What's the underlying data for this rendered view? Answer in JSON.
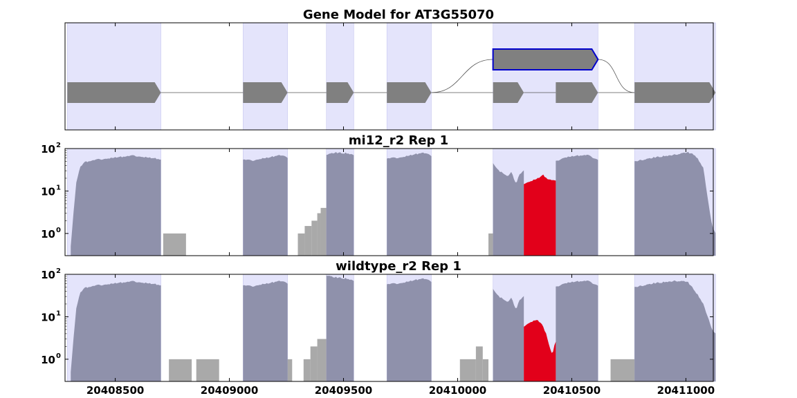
{
  "chart_data": {
    "type": "area",
    "x_axis": {
      "range": [
        20408280,
        20411120
      ],
      "tick_labels": [
        "20408500",
        "20409000",
        "20409500",
        "20410000",
        "20410500",
        "20411000"
      ],
      "tick_values": [
        20408500,
        20409000,
        20409500,
        20410000,
        20410500,
        20411000
      ]
    },
    "panels": [
      {
        "kind": "gene-model",
        "title": "Gene Model for AT3G55070",
        "exon_regions": [
          [
            20408290,
            20408700
          ],
          [
            20409060,
            20409255
          ],
          [
            20409425,
            20409545
          ],
          [
            20409690,
            20409885
          ],
          [
            20410155,
            20410615
          ],
          [
            20410775,
            20411130
          ]
        ],
        "transcripts": [
          {
            "exons": [
              [
                20408290,
                20408700
              ],
              [
                20409060,
                20409255
              ],
              [
                20409425,
                20409545
              ],
              [
                20409690,
                20409885
              ],
              [
                20410155,
                20410290
              ],
              [
                20410430,
                20410615
              ],
              [
                20410775,
                20411130
              ]
            ]
          }
        ],
        "highlighted_feature": {
          "start": 20410155,
          "end": 20410615,
          "connects_from": 20409885,
          "connects_to": 20410775
        },
        "colors": {
          "exon": "#808080",
          "highlight_border": "#0000cc",
          "region_shade": "#e4e4fb"
        }
      },
      {
        "kind": "coverage",
        "title": "mi12_r2 Rep 1",
        "log_scale": true,
        "y_range": [
          0.3,
          100
        ],
        "y_tick_labels": [
          "10",
          "10",
          "10"
        ],
        "y_tick_exponents": [
          "0",
          "1",
          "2"
        ],
        "y_tick_values": [
          1,
          10,
          100
        ],
        "coverage_blocks": [
          {
            "start": 20408305,
            "end": 20408700,
            "profile": [
              [
                0,
                0.5
              ],
              [
                0.03,
                3
              ],
              [
                0.06,
                15
              ],
              [
                0.1,
                35
              ],
              [
                0.15,
                48
              ],
              [
                0.3,
                55
              ],
              [
                0.5,
                62
              ],
              [
                0.7,
                68
              ],
              [
                0.85,
                62
              ],
              [
                0.95,
                58
              ],
              [
                1,
                55
              ]
            ]
          },
          {
            "start": 20409060,
            "end": 20409255,
            "profile": [
              [
                0,
                55
              ],
              [
                0.2,
                52
              ],
              [
                0.4,
                58
              ],
              [
                0.6,
                62
              ],
              [
                0.8,
                70
              ],
              [
                1,
                62
              ]
            ]
          },
          {
            "start": 20409425,
            "end": 20409545,
            "profile": [
              [
                0,
                72
              ],
              [
                0.3,
                80
              ],
              [
                0.7,
                78
              ],
              [
                1,
                72
              ]
            ]
          },
          {
            "start": 20409690,
            "end": 20409885,
            "profile": [
              [
                0,
                58
              ],
              [
                0.3,
                62
              ],
              [
                0.6,
                72
              ],
              [
                0.8,
                80
              ],
              [
                1,
                68
              ]
            ]
          },
          {
            "start": 20410155,
            "end": 20410290,
            "profile": [
              [
                0,
                45
              ],
              [
                0.2,
                30
              ],
              [
                0.45,
                22
              ],
              [
                0.6,
                28
              ],
              [
                0.75,
                14
              ],
              [
                0.85,
                25
              ],
              [
                1,
                30
              ]
            ]
          },
          {
            "start": 20410430,
            "end": 20410615,
            "profile": [
              [
                0,
                50
              ],
              [
                0.2,
                62
              ],
              [
                0.5,
                68
              ],
              [
                0.75,
                70
              ],
              [
                1,
                55
              ]
            ]
          },
          {
            "start": 20410775,
            "end": 20411130,
            "profile": [
              [
                0,
                50
              ],
              [
                0.25,
                62
              ],
              [
                0.5,
                72
              ],
              [
                0.65,
                82
              ],
              [
                0.75,
                70
              ],
              [
                0.85,
                35
              ],
              [
                0.92,
                4
              ],
              [
                0.96,
                1.5
              ],
              [
                1,
                1
              ]
            ]
          }
        ],
        "extra_coverage": [
          {
            "start": 20410135,
            "end": 20410155,
            "value": 1
          },
          {
            "start": 20408710,
            "end": 20408810,
            "value": 1
          }
        ],
        "highlight_coverage": {
          "start": 20410290,
          "end": 20410430,
          "profile": [
            [
              0,
              15
            ],
            [
              0.2,
              17
            ],
            [
              0.45,
              20
            ],
            [
              0.6,
              24
            ],
            [
              0.75,
              19
            ],
            [
              1,
              17
            ]
          ]
        },
        "intron_bars": [
          {
            "start": 20409300,
            "end": 20409330,
            "value": 1
          },
          {
            "start": 20409330,
            "end": 20409360,
            "value": 1.5
          },
          {
            "start": 20409360,
            "end": 20409385,
            "value": 2
          },
          {
            "start": 20409385,
            "end": 20409400,
            "value": 3
          },
          {
            "start": 20409400,
            "end": 20409425,
            "value": 4
          }
        ],
        "colors": {
          "coverage": "#8f91ab",
          "highlight_coverage": "#e2001a",
          "intron_coverage": "#a9a9a9",
          "region_shade": "#e4e4fb"
        }
      },
      {
        "kind": "coverage",
        "title": "wildtype_r2 Rep 1",
        "log_scale": true,
        "y_range": [
          0.3,
          100
        ],
        "y_tick_labels": [
          "10",
          "10",
          "10"
        ],
        "y_tick_exponents": [
          "0",
          "1",
          "2"
        ],
        "y_tick_values": [
          1,
          10,
          100
        ],
        "coverage_blocks": [
          {
            "start": 20408305,
            "end": 20408700,
            "profile": [
              [
                0,
                0.5
              ],
              [
                0.03,
                3
              ],
              [
                0.06,
                15
              ],
              [
                0.1,
                35
              ],
              [
                0.15,
                48
              ],
              [
                0.3,
                55
              ],
              [
                0.5,
                62
              ],
              [
                0.7,
                68
              ],
              [
                0.85,
                62
              ],
              [
                0.95,
                58
              ],
              [
                1,
                55
              ]
            ]
          },
          {
            "start": 20409060,
            "end": 20409255,
            "profile": [
              [
                0,
                55
              ],
              [
                0.2,
                52
              ],
              [
                0.4,
                58
              ],
              [
                0.6,
                62
              ],
              [
                0.8,
                70
              ],
              [
                1,
                62
              ]
            ]
          },
          {
            "start": 20409425,
            "end": 20409545,
            "profile": [
              [
                0,
                95
              ],
              [
                0.3,
                85
              ],
              [
                0.7,
                80
              ],
              [
                1,
                72
              ]
            ]
          },
          {
            "start": 20409690,
            "end": 20409885,
            "profile": [
              [
                0,
                58
              ],
              [
                0.3,
                62
              ],
              [
                0.6,
                72
              ],
              [
                0.8,
                80
              ],
              [
                1,
                68
              ]
            ]
          },
          {
            "start": 20410155,
            "end": 20410290,
            "profile": [
              [
                0,
                45
              ],
              [
                0.2,
                30
              ],
              [
                0.45,
                22
              ],
              [
                0.6,
                28
              ],
              [
                0.75,
                14
              ],
              [
                0.85,
                25
              ],
              [
                1,
                30
              ]
            ]
          },
          {
            "start": 20410430,
            "end": 20410615,
            "profile": [
              [
                0,
                50
              ],
              [
                0.2,
                62
              ],
              [
                0.5,
                68
              ],
              [
                0.75,
                70
              ],
              [
                1,
                55
              ]
            ]
          },
          {
            "start": 20410775,
            "end": 20411130,
            "profile": [
              [
                0,
                50
              ],
              [
                0.25,
                62
              ],
              [
                0.5,
                70
              ],
              [
                0.65,
                68
              ],
              [
                0.75,
                40
              ],
              [
                0.85,
                20
              ],
              [
                0.92,
                8
              ],
              [
                0.96,
                5
              ],
              [
                1,
                4
              ]
            ]
          }
        ],
        "extra_coverage": [],
        "highlight_coverage": {
          "start": 20410290,
          "end": 20410430,
          "profile": [
            [
              0,
              6
            ],
            [
              0.2,
              7.5
            ],
            [
              0.4,
              8.5
            ],
            [
              0.55,
              7
            ],
            [
              0.7,
              4
            ],
            [
              0.8,
              2
            ],
            [
              0.85,
              1.5
            ],
            [
              0.9,
              1.3
            ],
            [
              0.95,
              2
            ],
            [
              1,
              2.5
            ]
          ]
        },
        "intron_bars": [
          {
            "start": 20408735,
            "end": 20408835,
            "value": 1
          },
          {
            "start": 20408855,
            "end": 20408955,
            "value": 1
          },
          {
            "start": 20409255,
            "end": 20409275,
            "value": 1
          },
          {
            "start": 20409325,
            "end": 20409355,
            "value": 1
          },
          {
            "start": 20409355,
            "end": 20409385,
            "value": 2
          },
          {
            "start": 20409385,
            "end": 20409425,
            "value": 3
          },
          {
            "start": 20410010,
            "end": 20410080,
            "value": 1
          },
          {
            "start": 20410080,
            "end": 20410110,
            "value": 2
          },
          {
            "start": 20410110,
            "end": 20410135,
            "value": 1
          },
          {
            "start": 20410670,
            "end": 20410775,
            "value": 1
          }
        ],
        "colors": {
          "coverage": "#8f91ab",
          "highlight_coverage": "#e2001a",
          "intron_coverage": "#a9a9a9",
          "region_shade": "#e4e4fb"
        }
      }
    ]
  }
}
